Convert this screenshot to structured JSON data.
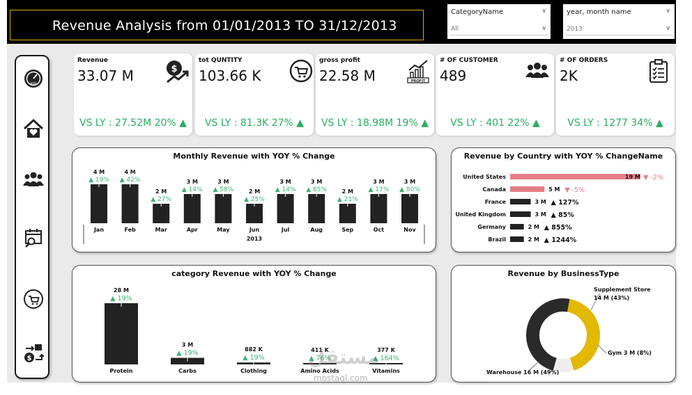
{
  "header": {
    "title": "Revenue Analysis    from 01/01/2013 TO 31/12/2013",
    "slicers": [
      {
        "label": "CategoryName",
        "value": "All"
      },
      {
        "label": "year, month name",
        "value": "2013"
      }
    ]
  },
  "sidebar": {
    "icons": [
      "kpi-gauge-icon",
      "home-heart-icon",
      "people-icon",
      "calendar-search-icon",
      "cart-icon",
      "money-transfer-icon"
    ]
  },
  "kpis": [
    {
      "label": "Revenue",
      "value": "33.07 M",
      "ly": "VS LY : 27.52M 20% ▲",
      "icon": "dollar-growth-icon"
    },
    {
      "label": "tot QUNTITY",
      "value": "103.66 K",
      "ly": "VS LY : 81.3K 27% ▲",
      "icon": "cart-circle-icon"
    },
    {
      "label": "gross profit",
      "value": "22.58 M",
      "ly": "VS LY : 18.98M 19% ▲",
      "icon": "profit-chart-icon"
    },
    {
      "label": "# OF CUSTOMER",
      "value": "489",
      "ly": "VS LY : 401 22% ▲",
      "icon": "customers-icon"
    },
    {
      "label": "# OF ORDERS",
      "value": "2K",
      "ly": "VS LY : 1277 34% ▲",
      "icon": "clipboard-icon"
    }
  ],
  "chart_data": [
    {
      "type": "bar",
      "title": "Monthly Revenue with YOY % Change",
      "categories": [
        "Jan",
        "Feb",
        "Mar",
        "Apr",
        "May",
        "Jun",
        "Jul",
        "Aug",
        "Sep",
        "Oct",
        "Nov"
      ],
      "values": [
        4,
        4,
        2,
        3,
        3,
        2,
        3,
        3,
        2,
        3,
        3
      ],
      "value_labels": [
        "4 M",
        "4 M",
        "2 M",
        "3 M",
        "3 M",
        "2 M",
        "3 M",
        "3 M",
        "2 M",
        "3 M",
        "3 M"
      ],
      "yoy": [
        "▲ 19%",
        "▲ 42%",
        "▲ 27%",
        "▲ 14%",
        "▲ 58%",
        "▲ 25%",
        "▲ 14%",
        "▲ 85%",
        "▲ 21%",
        "▲ 17%",
        "▲ 80%"
      ],
      "xlabel": "2013",
      "ylabel": ""
    },
    {
      "type": "bar",
      "title": "Revenue by Country with YOY % ChangeName",
      "categories": [
        "United States",
        "Canada",
        "France",
        "United Kingdom",
        "Germany",
        "Brazil"
      ],
      "values": [
        19,
        5,
        3,
        3,
        2,
        2
      ],
      "value_labels": [
        "19 M",
        "5 M",
        "3 M",
        "3 M",
        "2 M",
        "2 M"
      ],
      "yoy": [
        "▼ -2%",
        "▼ -5%",
        "▲ 127%",
        "▲ 85%",
        "▲ 855%",
        "▲ 1244%"
      ],
      "colors": [
        "#e57f86",
        "#e57f86",
        "#222222",
        "#222222",
        "#222222",
        "#222222"
      ]
    },
    {
      "type": "bar",
      "title": "category Revenue with YOY % Change",
      "categories": [
        "Protein",
        "Carbs",
        "Clothing",
        "Amino Acids",
        "Vitamins"
      ],
      "values": [
        28,
        3,
        0.882,
        0.411,
        0.377
      ],
      "value_labels": [
        "28 M",
        "3 M",
        "882 K",
        "411 K",
        "377 K"
      ],
      "yoy": [
        "▲ 19%",
        "▲ 19%",
        "▲ 19%",
        "▲ 76%",
        "▲ 164%"
      ]
    },
    {
      "type": "pie",
      "title": "Revenue by BusinessType",
      "categories": [
        "Supplement Store",
        "Gym",
        "Warehouse"
      ],
      "values": [
        14,
        3,
        16
      ],
      "percent": [
        43,
        8,
        49
      ],
      "labels": [
        "Supplement Store",
        "14 M (43%)",
        "Gym 3 M (8%)",
        "Warehouse 16 M (49%)"
      ],
      "colors": [
        "#e2b800",
        "#eeeeee",
        "#2a2a2a"
      ]
    }
  ],
  "watermark": {
    "text": "مستقل",
    "domain": "mostaql.com"
  },
  "colors": {
    "up": "#3cb371",
    "down": "#e57f86",
    "bar": "#222222",
    "accent": "#e2b800"
  }
}
